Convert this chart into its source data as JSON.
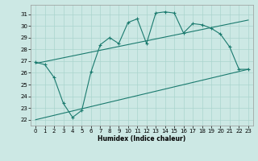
{
  "xlabel": "Humidex (Indice chaleur)",
  "bg_color": "#cce8e4",
  "line_color": "#1a7a6e",
  "grid_color": "#aad4ce",
  "xlim": [
    -0.5,
    23.5
  ],
  "ylim": [
    21.5,
    31.8
  ],
  "yticks": [
    22,
    23,
    24,
    25,
    26,
    27,
    28,
    29,
    30,
    31
  ],
  "xticks": [
    0,
    1,
    2,
    3,
    4,
    5,
    6,
    7,
    8,
    9,
    10,
    11,
    12,
    13,
    14,
    15,
    16,
    17,
    18,
    19,
    20,
    21,
    22,
    23
  ],
  "data_x": [
    0,
    1,
    2,
    3,
    4,
    5,
    6,
    7,
    8,
    9,
    10,
    11,
    12,
    13,
    14,
    15,
    16,
    17,
    18,
    19,
    20,
    21,
    22,
    23
  ],
  "data_y": [
    26.9,
    26.7,
    25.6,
    23.4,
    22.2,
    22.8,
    26.1,
    28.4,
    29.0,
    28.5,
    30.3,
    30.6,
    28.5,
    31.1,
    31.2,
    31.1,
    29.4,
    30.2,
    30.1,
    29.8,
    29.3,
    28.2,
    26.3,
    26.3
  ],
  "upper_trend_x": [
    0,
    23
  ],
  "upper_trend_y": [
    26.8,
    30.5
  ],
  "lower_trend_x": [
    0,
    23
  ],
  "lower_trend_y": [
    22.0,
    26.3
  ],
  "figsize": [
    3.2,
    2.0
  ],
  "dpi": 100
}
